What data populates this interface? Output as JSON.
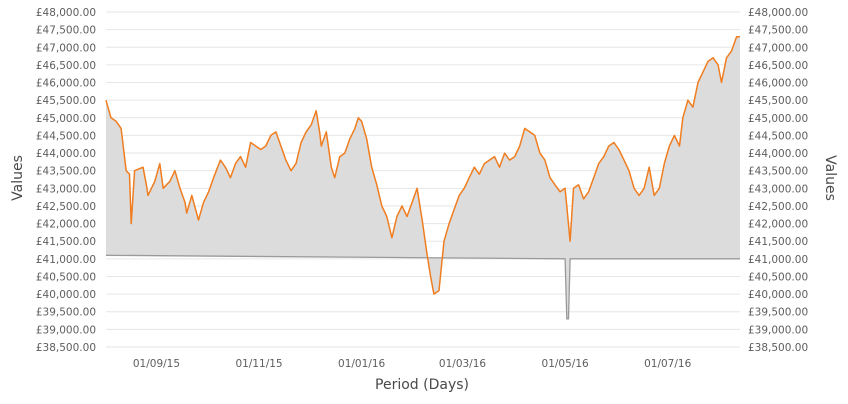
{
  "chart_data": {
    "type": "area",
    "xlabel": "Period (Days)",
    "ylabel_left": "Values",
    "ylabel_right": "Values",
    "ylim": [
      38500,
      48000
    ],
    "y_ticks": [
      38500,
      39000,
      39500,
      40000,
      40500,
      41000,
      41500,
      42000,
      42500,
      43000,
      43500,
      44000,
      44500,
      45000,
      45500,
      46000,
      46500,
      47000,
      47500,
      48000
    ],
    "y_tick_labels": [
      "£38,500.00",
      "£39,000.00",
      "£39,500.00",
      "£40,000.00",
      "£40,500.00",
      "£41,000.00",
      "£41,500.00",
      "£42,000.00",
      "£42,500.00",
      "£43,000.00",
      "£43,500.00",
      "£44,000.00",
      "£44,500.00",
      "£45,000.00",
      "£45,500.00",
      "£46,000.00",
      "£46,500.00",
      "£47,000.00",
      "£47,500.00",
      "£48,000.00"
    ],
    "x_range": [
      "2015-08-02",
      "2016-08-13"
    ],
    "x_ticks": [
      "2015-09-01",
      "2015-11-01",
      "2016-01-01",
      "2016-03-01",
      "2016-05-01",
      "2016-07-01"
    ],
    "x_tick_labels": [
      "01/09/15",
      "01/11/15",
      "01/01/16",
      "01/03/16",
      "01/05/16",
      "01/07/16"
    ],
    "grid": true,
    "colors": {
      "line": "#f07d1f",
      "fill": "#dcdcdc",
      "baseline": "#9a9a9a",
      "grid": "#e6e6e6"
    },
    "series": [
      {
        "values": [
          [
            "2015-08-02",
            45500
          ],
          [
            "2015-08-05",
            45000
          ],
          [
            "2015-08-08",
            44900
          ],
          [
            "2015-08-11",
            44700
          ],
          [
            "2015-08-14",
            43500
          ],
          [
            "2015-08-16",
            43400
          ],
          [
            "2015-08-17",
            42000
          ],
          [
            "2015-08-19",
            43500
          ],
          [
            "2015-08-24",
            43600
          ],
          [
            "2015-08-26",
            43100
          ],
          [
            "2015-08-27",
            42800
          ],
          [
            "2015-08-31",
            43200
          ],
          [
            "2015-09-03",
            43700
          ],
          [
            "2015-09-05",
            43000
          ],
          [
            "2015-09-09",
            43200
          ],
          [
            "2015-09-12",
            43500
          ],
          [
            "2015-09-15",
            43000
          ],
          [
            "2015-09-18",
            42600
          ],
          [
            "2015-09-19",
            42300
          ],
          [
            "2015-09-22",
            42800
          ],
          [
            "2015-09-26",
            42100
          ],
          [
            "2015-09-29",
            42600
          ],
          [
            "2015-10-02",
            42900
          ],
          [
            "2015-10-05",
            43300
          ],
          [
            "2015-10-09",
            43800
          ],
          [
            "2015-10-12",
            43600
          ],
          [
            "2015-10-15",
            43300
          ],
          [
            "2015-10-18",
            43700
          ],
          [
            "2015-10-21",
            43900
          ],
          [
            "2015-10-24",
            43600
          ],
          [
            "2015-10-27",
            44300
          ],
          [
            "2015-10-30",
            44200
          ],
          [
            "2015-11-02",
            44100
          ],
          [
            "2015-11-05",
            44200
          ],
          [
            "2015-11-08",
            44500
          ],
          [
            "2015-11-11",
            44600
          ],
          [
            "2015-11-14",
            44200
          ],
          [
            "2015-11-17",
            43800
          ],
          [
            "2015-11-20",
            43500
          ],
          [
            "2015-11-23",
            43700
          ],
          [
            "2015-11-26",
            44300
          ],
          [
            "2015-11-29",
            44600
          ],
          [
            "2015-12-02",
            44800
          ],
          [
            "2015-12-05",
            45200
          ],
          [
            "2015-12-07",
            44600
          ],
          [
            "2015-12-08",
            44200
          ],
          [
            "2015-12-11",
            44600
          ],
          [
            "2015-12-14",
            43600
          ],
          [
            "2015-12-16",
            43300
          ],
          [
            "2015-12-19",
            43900
          ],
          [
            "2015-12-22",
            44000
          ],
          [
            "2015-12-25",
            44400
          ],
          [
            "2015-12-28",
            44700
          ],
          [
            "2015-12-30",
            45000
          ],
          [
            "2016-01-01",
            44900
          ],
          [
            "2016-01-04",
            44400
          ],
          [
            "2016-01-07",
            43600
          ],
          [
            "2016-01-10",
            43100
          ],
          [
            "2016-01-13",
            42500
          ],
          [
            "2016-01-16",
            42200
          ],
          [
            "2016-01-19",
            41600
          ],
          [
            "2016-01-22",
            42200
          ],
          [
            "2016-01-25",
            42500
          ],
          [
            "2016-01-28",
            42200
          ],
          [
            "2016-01-31",
            42600
          ],
          [
            "2016-02-03",
            43000
          ],
          [
            "2016-02-06",
            42100
          ],
          [
            "2016-02-09",
            41100
          ],
          [
            "2016-02-11",
            40500
          ],
          [
            "2016-02-13",
            40000
          ],
          [
            "2016-02-16",
            40100
          ],
          [
            "2016-02-19",
            41500
          ],
          [
            "2016-02-22",
            42000
          ],
          [
            "2016-02-25",
            42400
          ],
          [
            "2016-02-28",
            42800
          ],
          [
            "2016-03-02",
            43000
          ],
          [
            "2016-03-05",
            43300
          ],
          [
            "2016-03-08",
            43600
          ],
          [
            "2016-03-11",
            43400
          ],
          [
            "2016-03-14",
            43700
          ],
          [
            "2016-03-17",
            43800
          ],
          [
            "2016-03-20",
            43900
          ],
          [
            "2016-03-23",
            43600
          ],
          [
            "2016-03-26",
            44000
          ],
          [
            "2016-03-29",
            43800
          ],
          [
            "2016-04-01",
            43900
          ],
          [
            "2016-04-04",
            44200
          ],
          [
            "2016-04-07",
            44700
          ],
          [
            "2016-04-10",
            44600
          ],
          [
            "2016-04-13",
            44500
          ],
          [
            "2016-04-16",
            44000
          ],
          [
            "2016-04-19",
            43800
          ],
          [
            "2016-04-22",
            43300
          ],
          [
            "2016-04-25",
            43100
          ],
          [
            "2016-04-28",
            42900
          ],
          [
            "2016-05-01",
            43000
          ],
          [
            "2016-05-04",
            41500
          ],
          [
            "2016-05-06",
            43000
          ],
          [
            "2016-05-09",
            43100
          ],
          [
            "2016-05-12",
            42700
          ],
          [
            "2016-05-15",
            42900
          ],
          [
            "2016-05-18",
            43300
          ],
          [
            "2016-05-21",
            43700
          ],
          [
            "2016-05-24",
            43900
          ],
          [
            "2016-05-27",
            44200
          ],
          [
            "2016-05-30",
            44300
          ],
          [
            "2016-06-02",
            44100
          ],
          [
            "2016-06-05",
            43800
          ],
          [
            "2016-06-08",
            43500
          ],
          [
            "2016-06-11",
            43000
          ],
          [
            "2016-06-14",
            42800
          ],
          [
            "2016-06-17",
            43000
          ],
          [
            "2016-06-20",
            43600
          ],
          [
            "2016-06-23",
            42800
          ],
          [
            "2016-06-26",
            43000
          ],
          [
            "2016-06-29",
            43700
          ],
          [
            "2016-07-02",
            44200
          ],
          [
            "2016-07-05",
            44500
          ],
          [
            "2016-07-08",
            44200
          ],
          [
            "2016-07-10",
            45000
          ],
          [
            "2016-07-13",
            45500
          ],
          [
            "2016-07-16",
            45300
          ],
          [
            "2016-07-19",
            46000
          ],
          [
            "2016-07-22",
            46300
          ],
          [
            "2016-07-25",
            46600
          ],
          [
            "2016-07-28",
            46700
          ],
          [
            "2016-07-31",
            46500
          ],
          [
            "2016-08-02",
            46000
          ],
          [
            "2016-08-05",
            46700
          ],
          [
            "2016-08-08",
            46900
          ],
          [
            "2016-08-11",
            47300
          ],
          [
            "2016-08-13",
            47300
          ]
        ]
      },
      {
        "values": [
          [
            "2015-08-02",
            41100
          ],
          [
            "2016-05-01",
            41000
          ],
          [
            "2016-05-02",
            39300
          ],
          [
            "2016-05-03",
            39300
          ],
          [
            "2016-05-04",
            41000
          ],
          [
            "2016-08-13",
            41000
          ]
        ]
      }
    ]
  }
}
